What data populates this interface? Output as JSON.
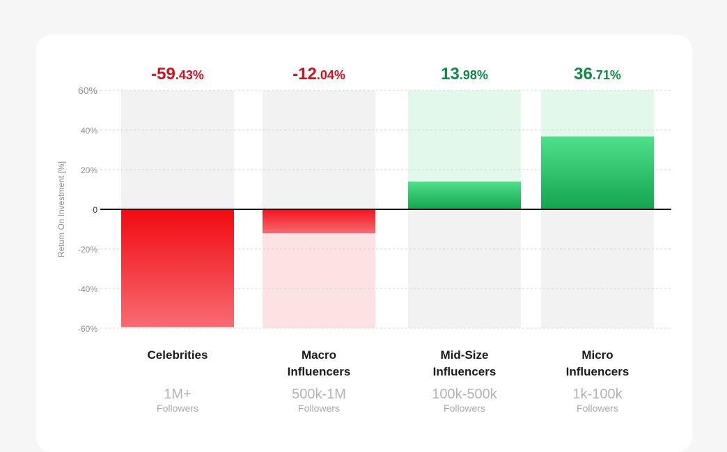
{
  "chart_data": {
    "type": "bar",
    "title": "",
    "xlabel": "",
    "ylabel": "Return On Investment [%]",
    "ylim": [
      -60,
      60
    ],
    "yticks": [
      {
        "value": 60,
        "label": "60%"
      },
      {
        "value": 40,
        "label": "40%"
      },
      {
        "value": 20,
        "label": "20%"
      },
      {
        "value": 0,
        "label": "0"
      },
      {
        "value": -20,
        "label": "-20%"
      },
      {
        "value": -40,
        "label": "-40%"
      },
      {
        "value": -60,
        "label": "-60%"
      }
    ],
    "categories": [
      "Celebrities",
      "Macro Influencers",
      "Mid-Size Influencers",
      "Micro Influencers"
    ],
    "values": [
      -59.43,
      -12.04,
      13.98,
      36.71
    ],
    "value_labels": [
      {
        "int": "-59",
        "dec": ".43%"
      },
      {
        "int": "-12",
        "dec": ".04%"
      },
      {
        "int": "13",
        "dec": ".98%"
      },
      {
        "int": "36",
        "dec": ".71%"
      }
    ],
    "category_lines": [
      [
        "Celebrities"
      ],
      [
        "Macro",
        "Influencers"
      ],
      [
        "Mid-Size",
        "Influencers"
      ],
      [
        "Micro",
        "Influencers"
      ]
    ],
    "follower_ranges": [
      "1M+",
      "500k-1M",
      "100k-500k",
      "1k-100k"
    ],
    "followers_label": "Followers",
    "colors": {
      "negative": "#d5101d",
      "positive": "#0f8a46",
      "neg_bar_top": "#f20a10",
      "neg_bar_bottom": "#f86a72",
      "neg_light": "#fde2e4",
      "pos_bar_top": "#4fe08c",
      "pos_bar_bottom": "#15a44f",
      "pos_light": "#e2f8ea",
      "background_bar": "#f2f2f2"
    }
  }
}
